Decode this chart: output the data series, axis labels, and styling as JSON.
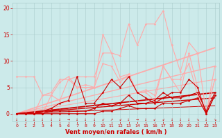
{
  "background_color": "#cceaea",
  "grid_color": "#aacccc",
  "text_color": "#cc0000",
  "xlabel": "Vent moyen/en rafales ( km/h )",
  "xlim": [
    -0.5,
    23.5
  ],
  "ylim": [
    -1.5,
    21
  ],
  "xticks": [
    0,
    1,
    2,
    3,
    4,
    5,
    6,
    7,
    8,
    9,
    10,
    11,
    12,
    13,
    14,
    15,
    16,
    17,
    18,
    19,
    20,
    21,
    22,
    23
  ],
  "yticks": [
    0,
    5,
    10,
    15,
    20
  ],
  "series": [
    {
      "x": [
        0,
        1,
        2,
        3,
        4,
        5,
        6,
        7,
        8,
        9,
        10,
        11,
        12,
        13,
        14,
        15,
        16,
        17,
        18,
        19,
        20,
        21,
        22,
        23
      ],
      "y": [
        0,
        0,
        0,
        0,
        3.5,
        6,
        7,
        5,
        5.5,
        5,
        15,
        11.5,
        11,
        17,
        13,
        17,
        17,
        19.5,
        13,
        8,
        13.5,
        11.5,
        0,
        9
      ],
      "color": "#ffaaaa",
      "lw": 0.8,
      "marker": "D",
      "ms": 1.5,
      "zorder": 2
    },
    {
      "x": [
        0,
        1,
        2,
        3,
        4,
        5,
        6,
        7,
        8,
        9,
        10,
        11,
        12,
        13,
        14,
        15,
        16,
        17,
        18,
        19,
        20,
        21,
        22,
        23
      ],
      "y": [
        7,
        7,
        7,
        3.5,
        4,
        6.5,
        6.5,
        7,
        7,
        7,
        11.5,
        11.5,
        7,
        7.5,
        4,
        4.5,
        3.5,
        9,
        6.5,
        4,
        11.5,
        5,
        0,
        6.5
      ],
      "color": "#ffaaaa",
      "lw": 0.8,
      "marker": "D",
      "ms": 1.5,
      "zorder": 2
    },
    {
      "x": [
        0,
        1,
        2,
        3,
        4,
        5,
        6,
        7,
        8,
        9,
        10,
        11,
        12,
        13,
        14,
        15,
        16,
        17,
        18,
        19,
        20,
        21,
        22,
        23
      ],
      "y": [
        0,
        0,
        0,
        3.5,
        3.5,
        2.5,
        6.5,
        5,
        5,
        5,
        9.5,
        9,
        6,
        7.5,
        4,
        4,
        2.5,
        9,
        6.5,
        6.5,
        9.5,
        3.5,
        0,
        6.5
      ],
      "color": "#ffaaaa",
      "lw": 0.8,
      "marker": "D",
      "ms": 1.5,
      "zorder": 2
    },
    {
      "x": [
        0,
        1,
        2,
        3,
        4,
        5,
        6,
        7,
        8,
        9,
        10,
        11,
        12,
        13,
        14,
        15,
        16,
        17,
        18,
        19,
        20,
        21,
        22,
        23
      ],
      "y": [
        0,
        0,
        0,
        0.5,
        1,
        2,
        2.5,
        7,
        2,
        2,
        4,
        6.5,
        5,
        7,
        4,
        3,
        2,
        3,
        4,
        4,
        6.5,
        5,
        0,
        3.5
      ],
      "color": "#cc0000",
      "lw": 0.8,
      "marker": "D",
      "ms": 1.5,
      "zorder": 3
    },
    {
      "x": [
        0,
        1,
        2,
        3,
        4,
        5,
        6,
        7,
        8,
        9,
        10,
        11,
        12,
        13,
        14,
        15,
        16,
        17,
        18,
        19,
        20,
        21,
        22,
        23
      ],
      "y": [
        0,
        0,
        0,
        0,
        0.5,
        0.5,
        0.5,
        0.5,
        0.5,
        1,
        2,
        1.5,
        2,
        3.5,
        2,
        2,
        2.5,
        4,
        3,
        3,
        3.5,
        4,
        0.5,
        4
      ],
      "color": "#cc0000",
      "lw": 0.8,
      "marker": "D",
      "ms": 1.5,
      "zorder": 3
    },
    {
      "x": [
        0,
        1,
        2,
        3,
        4,
        5,
        6,
        7,
        8,
        9,
        10,
        11,
        12,
        13,
        14,
        15,
        16,
        17,
        18,
        19,
        20,
        21,
        22,
        23
      ],
      "y": [
        0,
        0,
        0,
        0,
        0,
        0,
        0,
        0,
        0,
        0,
        0.5,
        0.5,
        1,
        1.5,
        1,
        1,
        1,
        2,
        2,
        2,
        2.5,
        3,
        0,
        3.5
      ],
      "color": "#cc0000",
      "lw": 0.8,
      "marker": "D",
      "ms": 1.5,
      "zorder": 3
    },
    {
      "x": [
        0,
        23
      ],
      "y": [
        0,
        12.5
      ],
      "color": "#ffaaaa",
      "lw": 1.3,
      "marker": null,
      "ms": 0,
      "zorder": 1
    },
    {
      "x": [
        0,
        23
      ],
      "y": [
        0,
        9.0
      ],
      "color": "#ffaaaa",
      "lw": 1.0,
      "marker": null,
      "ms": 0,
      "zorder": 1
    },
    {
      "x": [
        0,
        23
      ],
      "y": [
        0,
        6.5
      ],
      "color": "#ffaaaa",
      "lw": 0.8,
      "marker": null,
      "ms": 0,
      "zorder": 1
    },
    {
      "x": [
        0,
        23
      ],
      "y": [
        0,
        4.0
      ],
      "color": "#cc0000",
      "lw": 1.3,
      "marker": null,
      "ms": 0,
      "zorder": 1
    },
    {
      "x": [
        0,
        23
      ],
      "y": [
        0,
        3.0
      ],
      "color": "#cc0000",
      "lw": 1.0,
      "marker": null,
      "ms": 0,
      "zorder": 1
    },
    {
      "x": [
        0,
        23
      ],
      "y": [
        0,
        1.5
      ],
      "color": "#cc0000",
      "lw": 0.7,
      "marker": null,
      "ms": 0,
      "zorder": 1
    }
  ],
  "wind_arrows": [
    {
      "x": 0,
      "sym": "↓"
    },
    {
      "x": 1,
      "sym": "↓"
    },
    {
      "x": 2,
      "sym": "↓"
    },
    {
      "x": 3,
      "sym": "↓"
    },
    {
      "x": 4,
      "sym": "↓"
    },
    {
      "x": 5,
      "sym": "↓"
    },
    {
      "x": 6,
      "sym": "→"
    },
    {
      "x": 7,
      "sym": "↓"
    },
    {
      "x": 8,
      "sym": "↓"
    },
    {
      "x": 9,
      "sym": "↓"
    },
    {
      "x": 10,
      "sym": "↙"
    },
    {
      "x": 11,
      "sym": "↗"
    },
    {
      "x": 12,
      "sym": "↙"
    },
    {
      "x": 13,
      "sym": "↓"
    },
    {
      "x": 14,
      "sym": "→"
    },
    {
      "x": 15,
      "sym": "↓"
    },
    {
      "x": 16,
      "sym": "↙"
    },
    {
      "x": 17,
      "sym": "↙"
    },
    {
      "x": 18,
      "sym": "↓"
    },
    {
      "x": 19,
      "sym": "↓"
    },
    {
      "x": 20,
      "sym": "↓"
    },
    {
      "x": 21,
      "sym": "↘"
    },
    {
      "x": 22,
      "sym": "↓"
    },
    {
      "x": 23,
      "sym": "↘"
    }
  ]
}
